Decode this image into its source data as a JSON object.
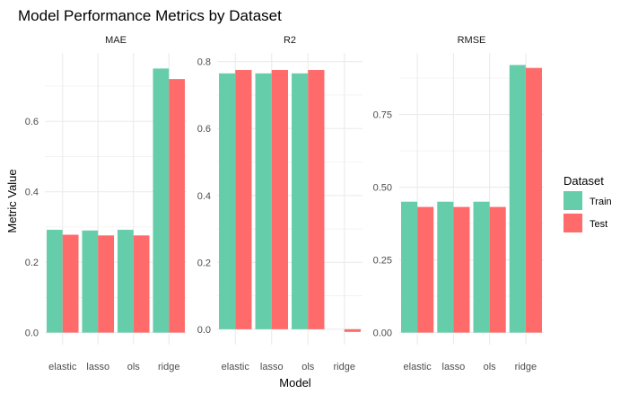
{
  "chart_data": {
    "type": "bar",
    "title": "Model Performance Metrics by Dataset",
    "xlabel": "Model",
    "ylabel": "Metric Value",
    "grid": true,
    "legend": {
      "title": "Dataset",
      "position": "right",
      "items": [
        "Train",
        "Test"
      ]
    },
    "colors": {
      "Train": "#66CDAA",
      "Test": "#FF6B6B",
      "grid": "#EBEBEB"
    },
    "categories": [
      "elastic",
      "lasso",
      "ols",
      "ridge"
    ],
    "panels": [
      {
        "name": "MAE",
        "ylim": [
          0,
          0.76
        ],
        "y_ticks": [
          0.0,
          0.2,
          0.4,
          0.6
        ],
        "y_tick_labels": [
          "0.0",
          "0.2",
          "0.4",
          "0.6"
        ],
        "series": [
          {
            "name": "Train",
            "values": [
              0.292,
              0.29,
              0.292,
              0.75
            ]
          },
          {
            "name": "Test",
            "values": [
              0.278,
              0.276,
              0.276,
              0.72
            ]
          }
        ]
      },
      {
        "name": "R2",
        "ylim": [
          -0.01,
          0.79
        ],
        "y_ticks": [
          0.0,
          0.2,
          0.4,
          0.6,
          0.8
        ],
        "y_tick_labels": [
          "0.0",
          "0.2",
          "0.4",
          "0.6",
          "0.8"
        ],
        "series": [
          {
            "name": "Train",
            "values": [
              0.765,
              0.765,
              0.765,
              0.0
            ]
          },
          {
            "name": "Test",
            "values": [
              0.775,
              0.775,
              0.775,
              -0.008
            ]
          }
        ]
      },
      {
        "name": "RMSE",
        "ylim": [
          0,
          0.92
        ],
        "y_ticks": [
          0.0,
          0.25,
          0.5,
          0.75
        ],
        "y_tick_labels": [
          "0.00",
          "0.25",
          "0.50",
          "0.75"
        ],
        "series": [
          {
            "name": "Train",
            "values": [
              0.45,
              0.45,
              0.45,
              0.92
            ]
          },
          {
            "name": "Test",
            "values": [
              0.432,
              0.432,
              0.432,
              0.91
            ]
          }
        ]
      }
    ]
  }
}
